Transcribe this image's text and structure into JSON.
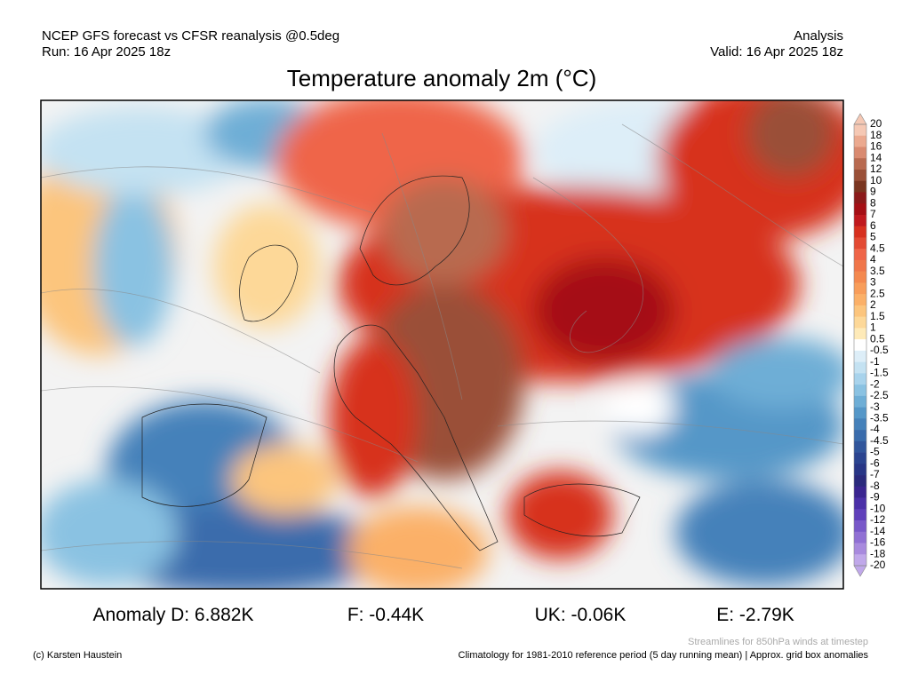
{
  "header": {
    "left": [
      "NCEP GFS forecast vs CFSR reanalysis @0.5deg",
      "Run: 16 Apr 2025 18z"
    ],
    "right": [
      "Analysis",
      "Valid: 16 Apr 2025 18z"
    ],
    "title": "Temperature anomaly 2m (°C)"
  },
  "colorbar": {
    "labels": [
      "20",
      "18",
      "16",
      "14",
      "12",
      "10",
      "9",
      "8",
      "7",
      "6",
      "5",
      "4.5",
      "4",
      "3.5",
      "3",
      "2.5",
      "2",
      "1.5",
      "1",
      "0.5",
      "-0.5",
      "-1",
      "-1.5",
      "-2",
      "-2.5",
      "-3",
      "-3.5",
      "-4",
      "-4.5",
      "-5",
      "-6",
      "-7",
      "-8",
      "-9",
      "-10",
      "-12",
      "-14",
      "-16",
      "-18",
      "-20"
    ],
    "colors": [
      "#f5c8b4",
      "#eba98f",
      "#d98a70",
      "#b86a50",
      "#9a5038",
      "#7a3520",
      "#8b1a1a",
      "#a50f15",
      "#c0191e",
      "#d7301f",
      "#e34a33",
      "#ef6548",
      "#f0764a",
      "#f4894f",
      "#f89d5a",
      "#fbb068",
      "#fcc57d",
      "#fdd898",
      "#feeab8",
      "#ffffff",
      "#ddeef8",
      "#c4e2f2",
      "#a8d3ec",
      "#8ac2e2",
      "#6eaed6",
      "#5597c8",
      "#4581ba",
      "#3a6cac",
      "#31569c",
      "#2b4490",
      "#283686",
      "#2a2a7c",
      "#3a2590",
      "#4b30a8",
      "#6040bb",
      "#7858c9",
      "#9070d4",
      "#a88ade",
      "#c0a8ea"
    ]
  },
  "stats": [
    "Anomaly D: 6.882K",
    "F: -0.44K",
    "UK: -0.06K",
    "E: -2.79K"
  ],
  "footer": {
    "credit": "(c) Karsten Haustein",
    "note": "Streamlines for 850hPa winds at timestep",
    "climatology": "Climatology for 1981-2010 reference period (5 day running mean) | Approx. grid box anomalies"
  }
}
